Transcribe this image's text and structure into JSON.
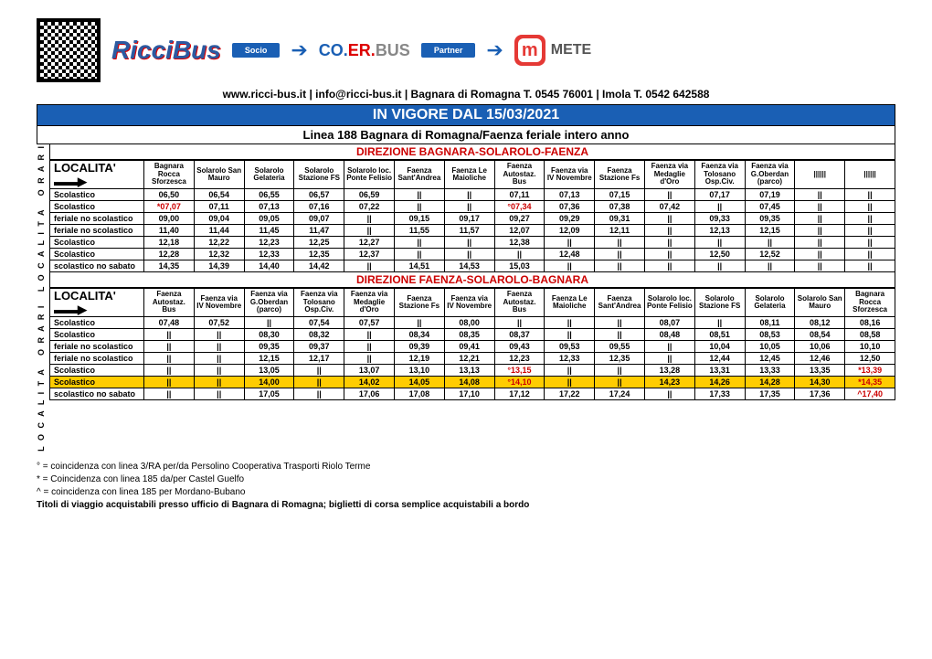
{
  "header": {
    "logo_ricci": "RicciBus",
    "socio": "Socio",
    "logo_coer": "CO.ER.BUS",
    "partner": "Partner",
    "mete_m": "m",
    "mete_text": "METE",
    "contact": "www.ricci-bus.it  |  info@ricci-bus.it  |  Bagnara di Romagna T. 0545 76001  |  Imola T. 0542 642588"
  },
  "title": "IN VIGORE DAL 15/03/2021",
  "subtitle": "Linea 188 Bagnara di Romagna/Faenza feriale intero anno",
  "side1": "LOCALITA'  ORARI",
  "side2": "LOCALITA'  ORARI",
  "dir1": {
    "title": "DIREZIONE BAGNARA-SOLAROLO-FAENZA",
    "loc_label": "LOCALITA'",
    "stops": [
      "Bagnara Rocca Sforzesca",
      "Solarolo San Mauro",
      "Solarolo Gelateria",
      "Solarolo Stazione FS",
      "Solarolo loc. Ponte Felisio",
      "Faenza Sant'Andrea",
      "Faenza Le Maioliche",
      "Faenza Autostaz. Bus",
      "Faenza via IV Novembre",
      "Faenza Stazione Fs",
      "Faenza via Medaglie d'Oro",
      "Faenza via Tolosano Osp.Civ.",
      "Faenza via G.Oberdan (parco)",
      "||||||",
      "||||||"
    ],
    "rows": [
      {
        "lbl": "Scolastico",
        "c": [
          "06,50",
          "06,54",
          "06,55",
          "06,57",
          "06,59",
          "||",
          "||",
          "07,11",
          "07,13",
          "07,15",
          "||",
          "07,17",
          "07,19",
          "||",
          "||"
        ]
      },
      {
        "lbl": "Scolastico",
        "c": [
          "*07,07",
          "07,11",
          "07,13",
          "07,16",
          "07,22",
          "||",
          "||",
          "°07,34",
          "07,36",
          "07,38",
          "07,42",
          "||",
          "07,45",
          "||",
          "||"
        ],
        "redIdx": [
          0,
          7
        ]
      },
      {
        "lbl": "feriale no scolastico",
        "c": [
          "09,00",
          "09,04",
          "09,05",
          "09,07",
          "||",
          "09,15",
          "09,17",
          "09,27",
          "09,29",
          "09,31",
          "||",
          "09,33",
          "09,35",
          "||",
          "||"
        ]
      },
      {
        "lbl": "feriale no scolastico",
        "c": [
          "11,40",
          "11,44",
          "11,45",
          "11,47",
          "||",
          "11,55",
          "11,57",
          "12,07",
          "12,09",
          "12,11",
          "||",
          "12,13",
          "12,15",
          "||",
          "||"
        ]
      },
      {
        "lbl": "Scolastico",
        "c": [
          "12,18",
          "12,22",
          "12,23",
          "12,25",
          "12,27",
          "||",
          "||",
          "12,38",
          "||",
          "||",
          "||",
          "||",
          "||",
          "||",
          "||"
        ]
      },
      {
        "lbl": "Scolastico",
        "c": [
          "12,28",
          "12,32",
          "12,33",
          "12,35",
          "12,37",
          "||",
          "||",
          "||",
          "12,48",
          "||",
          "||",
          "12,50",
          "12,52",
          "||",
          "||"
        ]
      },
      {
        "lbl": "scolastico no sabato",
        "c": [
          "14,35",
          "14,39",
          "14,40",
          "14,42",
          "||",
          "14,51",
          "14,53",
          "15,03",
          "||",
          "||",
          "||",
          "||",
          "||",
          "||",
          "||"
        ]
      }
    ]
  },
  "dir2": {
    "title": "DIREZIONE FAENZA-SOLAROLO-BAGNARA",
    "loc_label": "LOCALITA'",
    "stops": [
      "Faenza Autostaz. Bus",
      "Faenza via IV Novembre",
      "Faenza via G.Oberdan (parco)",
      "Faenza via Tolosano Osp.Civ.",
      "Faenza via Medaglie d'Oro",
      "Faenza Stazione Fs",
      "Faenza via IV Novembre",
      "Faenza Autostaz. Bus",
      "Faenza Le Maioliche",
      "Faenza Sant'Andrea",
      "Solarolo loc. Ponte Felisio",
      "Solarolo Stazione FS",
      "Solarolo Gelateria",
      "Solarolo San Mauro",
      "Bagnara Rocca Sforzesca"
    ],
    "rows": [
      {
        "lbl": "Scolastico",
        "c": [
          "07,48",
          "07,52",
          "||",
          "07,54",
          "07,57",
          "||",
          "08,00",
          "||",
          "||",
          "||",
          "08,07",
          "||",
          "08,11",
          "08,12",
          "08,16"
        ]
      },
      {
        "lbl": "Scolastico",
        "c": [
          "||",
          "||",
          "08,30",
          "08,32",
          "||",
          "08,34",
          "08,35",
          "08,37",
          "||",
          "||",
          "08,48",
          "08,51",
          "08,53",
          "08,54",
          "08,58"
        ]
      },
      {
        "lbl": "feriale no scolastico",
        "c": [
          "||",
          "||",
          "09,35",
          "09,37",
          "||",
          "09,39",
          "09,41",
          "09,43",
          "09,53",
          "09,55",
          "||",
          "10,04",
          "10,05",
          "10,06",
          "10,10"
        ]
      },
      {
        "lbl": "feriale no scolastico",
        "c": [
          "||",
          "||",
          "12,15",
          "12,17",
          "||",
          "12,19",
          "12,21",
          "12,23",
          "12,33",
          "12,35",
          "||",
          "12,44",
          "12,45",
          "12,46",
          "12,50"
        ]
      },
      {
        "lbl": "Scolastico",
        "c": [
          "||",
          "||",
          "13,05",
          "||",
          "13,07",
          "13,10",
          "13,13",
          "°13,15",
          "||",
          "||",
          "13,28",
          "13,31",
          "13,33",
          "13,35",
          "*13,39"
        ],
        "redIdx": [
          7,
          14
        ]
      },
      {
        "lbl": "Scolastico",
        "hl": true,
        "c": [
          "||",
          "||",
          "14,00",
          "||",
          "14,02",
          "14,05",
          "14,08",
          "°14,10",
          "||",
          "||",
          "14,23",
          "14,26",
          "14,28",
          "14,30",
          "*14,35"
        ],
        "redIdx": [
          7,
          14
        ]
      },
      {
        "lbl": "scolastico no sabato",
        "c": [
          "||",
          "||",
          "17,05",
          "||",
          "17,06",
          "17,08",
          "17,10",
          "17,12",
          "17,22",
          "17,24",
          "||",
          "17,33",
          "17,35",
          "17,36",
          "^17,40"
        ],
        "redIdx": [
          14
        ]
      }
    ]
  },
  "notes": [
    "° = coincidenza con linea 3/RA per/da Persolino Cooperativa Trasporti Riolo Terme",
    "* = Coincidenza con linea 185 da/per Castel Guelfo",
    "^ = coincidenza con linea 185 per Mordano-Bubano",
    "Titoli di viaggio acquistabili presso ufficio di Bagnara di Romagna; biglietti di corsa semplice acquistabili a bordo"
  ],
  "colors": {
    "primary": "#1a5fb4",
    "red": "#c00",
    "highlight": "#ffcc00"
  }
}
